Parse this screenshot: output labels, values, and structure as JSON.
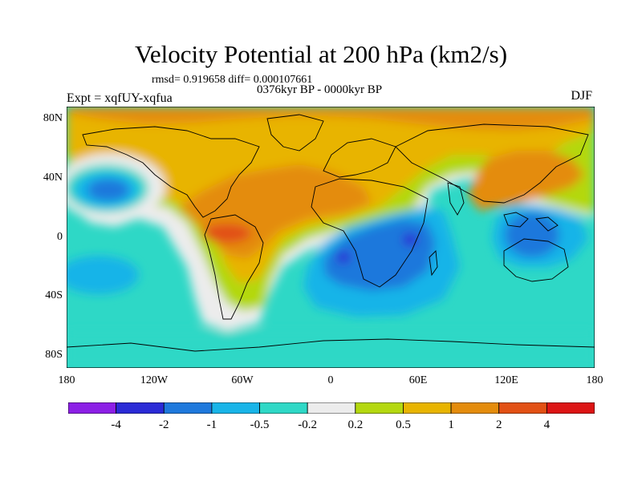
{
  "title": "Velocity Potential at 200 hPa (km2/s)",
  "stats_line": "rmsd= 0.919658 diff= 0.000107661",
  "period": "0376kyr BP - 0000kyr BP",
  "experiment": "Expt = xqfUY-xqfua",
  "season": "DJF",
  "lat_labels": [
    "80N",
    "40N",
    "0",
    "40S",
    "80S"
  ],
  "lon_labels": [
    "180",
    "120W",
    "60W",
    "0",
    "60E",
    "120E",
    "180"
  ],
  "colorbar": {
    "labels": [
      "-4",
      "-2",
      "-1",
      "-0.5",
      "-0.2",
      "0.2",
      "0.5",
      "1",
      "2",
      "4"
    ],
    "colors": [
      "#8c1fe6",
      "#2a2ad6",
      "#1e78dc",
      "#18b4e8",
      "#2ed8c6",
      "#ececec",
      "#b4d80e",
      "#e8b400",
      "#e48c0c",
      "#e25014",
      "#dc1414"
    ]
  },
  "colors": {
    "ocean_background": "#2ed8c6",
    "coastline": "#000000"
  }
}
